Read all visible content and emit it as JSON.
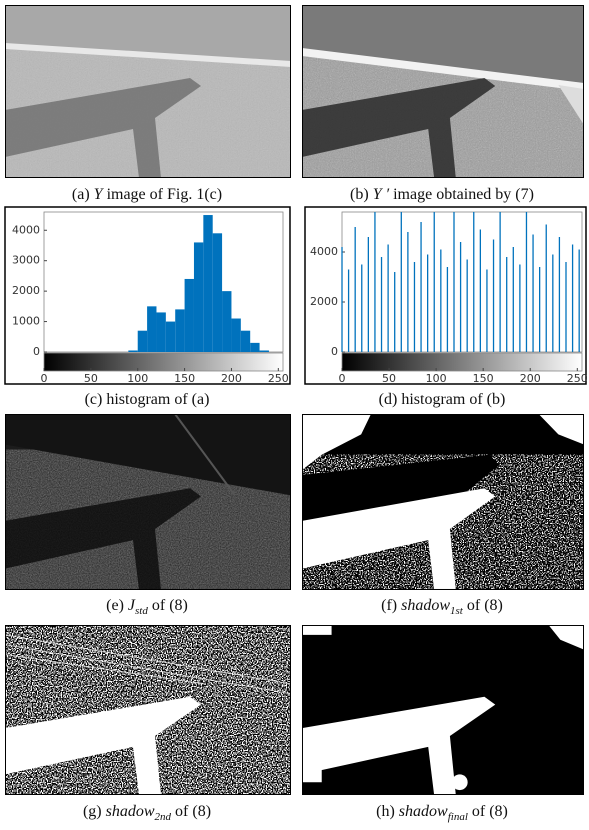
{
  "chart_data": [
    {
      "type": "histogram",
      "color": "#0072bd",
      "bins": [
        0,
        10,
        20,
        30,
        40,
        50,
        60,
        70,
        80,
        90,
        100,
        110,
        120,
        130,
        140,
        150,
        160,
        170,
        180,
        190,
        200,
        210,
        220,
        230,
        240,
        250
      ],
      "values": [
        0,
        0,
        0,
        0,
        0,
        0,
        0,
        0,
        0,
        50,
        700,
        1500,
        1300,
        1000,
        1400,
        2400,
        3600,
        4500,
        3900,
        2000,
        1100,
        700,
        300,
        50,
        0
      ],
      "xlim": [
        0,
        255
      ],
      "xticks": [
        0,
        50,
        100,
        150,
        200,
        250
      ],
      "ylim": [
        0,
        4600
      ],
      "yticks": [
        0,
        1000,
        2000,
        3000,
        4000
      ]
    },
    {
      "type": "stem",
      "color": "#0072bd",
      "x": [
        0,
        7,
        14,
        21,
        28,
        35,
        42,
        49,
        56,
        63,
        70,
        77,
        84,
        91,
        98,
        105,
        112,
        119,
        126,
        133,
        140,
        147,
        154,
        161,
        168,
        175,
        182,
        189,
        196,
        203,
        210,
        217,
        224,
        231,
        238,
        245,
        252
      ],
      "values": [
        4200,
        3300,
        5000,
        3500,
        4600,
        5600,
        3800,
        4300,
        3200,
        5600,
        4800,
        3600,
        5200,
        3900,
        5600,
        4100,
        3400,
        5600,
        4400,
        3700,
        5600,
        4900,
        3300,
        4500,
        5600,
        3800,
        4200,
        3500,
        5600,
        4700,
        3400,
        5100,
        3900,
        4600,
        3600,
        4300,
        4100
      ],
      "xlim": [
        0,
        255
      ],
      "xticks": [
        0,
        50,
        100,
        150,
        200,
        250
      ],
      "ylim": [
        0,
        5600
      ],
      "yticks": [
        0,
        2000,
        4000
      ]
    }
  ],
  "captions": [
    {
      "label": "(a)",
      "math": "Y",
      "text": "image of Fig. 1(c)"
    },
    {
      "label": "(b)",
      "math": "Y ′",
      "text": "image obtained by (7)"
    },
    {
      "label": "(c)",
      "text": "histogram of (a)"
    },
    {
      "label": "(d)",
      "text": "histogram of (b)"
    },
    {
      "label": "(e)",
      "math": "J",
      "sub": "std",
      "text": "of (8)"
    },
    {
      "label": "(f)",
      "math": "shadow",
      "sub": "1st",
      "text": "of (8)"
    },
    {
      "label": "(g)",
      "math": "shadow",
      "sub": "2nd",
      "text": "of (8)"
    },
    {
      "label": "(h)",
      "math": "shadow",
      "sub": "final",
      "text": "of (8)"
    }
  ]
}
